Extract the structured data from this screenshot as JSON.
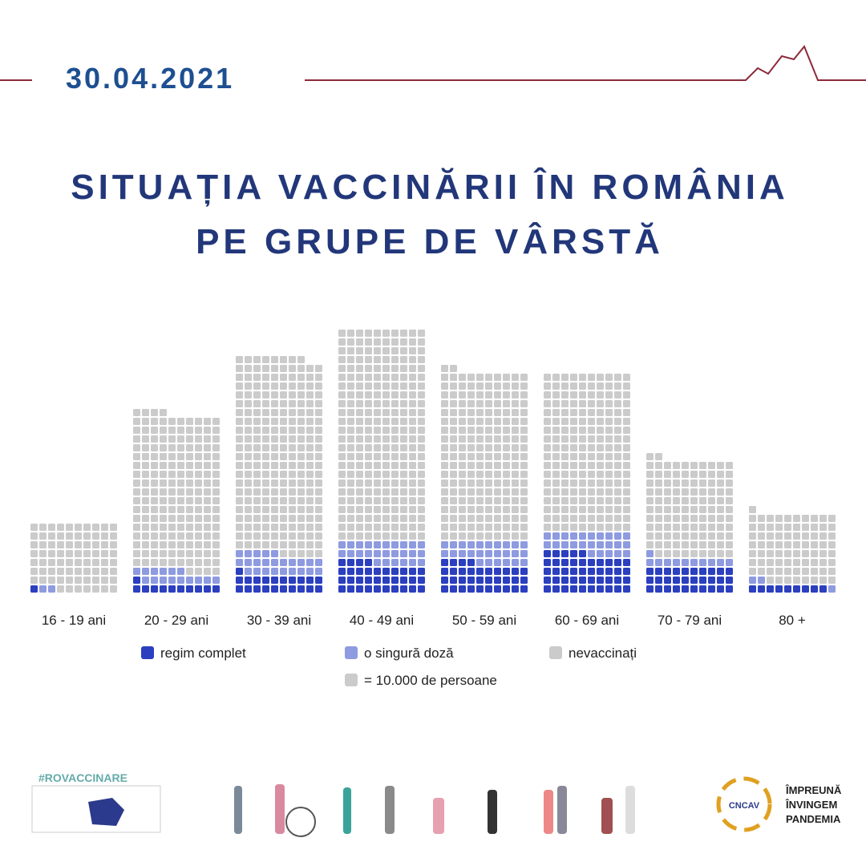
{
  "chart_data": {
    "type": "waffle",
    "date": "30.04.2021",
    "title_lines": [
      "SITUAȚIA VACCINĂRII ÎN ROMÂNIA",
      "PE GRUPE DE VÂRSTĂ"
    ],
    "categories": [
      "16 - 19 ani",
      "20 - 29 ani",
      "30 - 39 ani",
      "40 - 49 ani",
      "50 - 59 ani",
      "60 - 69 ani",
      "70 - 79 ani",
      "80 +"
    ],
    "series": [
      {
        "name": "regim complet",
        "color": "#2b3fbf",
        "values": [
          1,
          11,
          21,
          34,
          34,
          45,
          30,
          9
        ]
      },
      {
        "name": "o singură doză",
        "color": "#8e9be0",
        "values": [
          2,
          15,
          24,
          26,
          26,
          25,
          11,
          3
        ]
      },
      {
        "name": "nevaccinați",
        "color": "#cbcbcb",
        "values": [
          77,
          178,
          223,
          240,
          192,
          180,
          111,
          79
        ]
      }
    ],
    "unit_label": "= 10.000 de persoane",
    "hashtag": "#ROVACCINARE",
    "logo_initials": "CNCAV",
    "logo_lines": [
      "ÎMPREUNĂ",
      "ÎNVINGEM",
      "PANDEMIA"
    ]
  }
}
